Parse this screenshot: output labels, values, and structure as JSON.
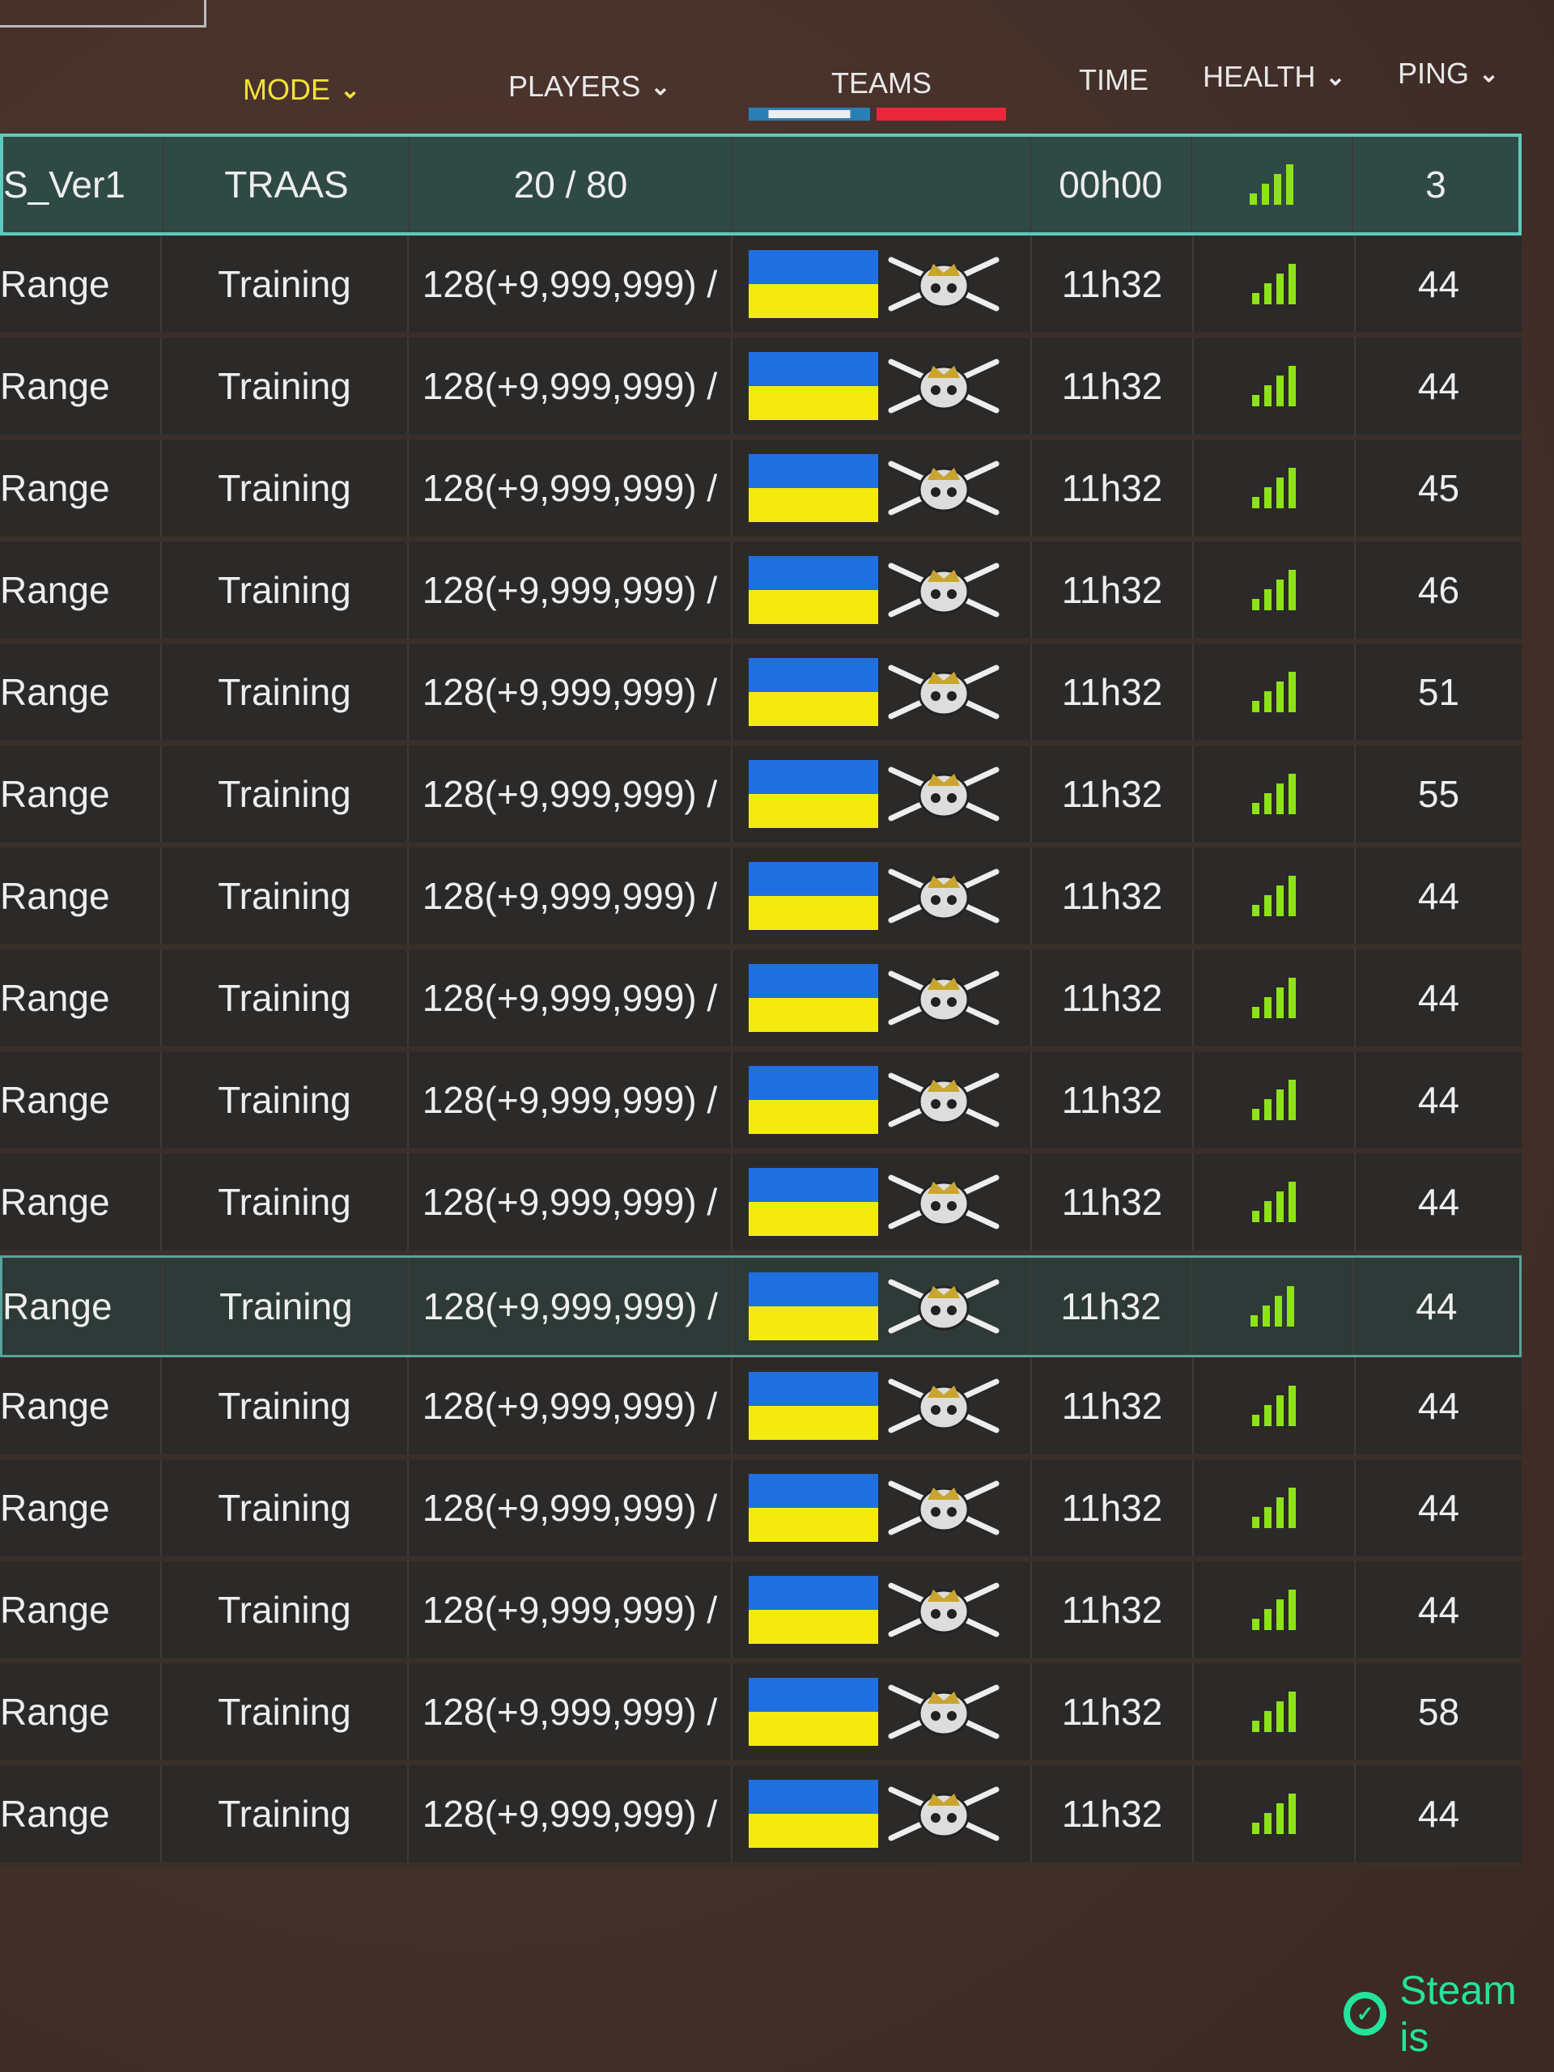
{
  "header": {
    "mode": "MODE",
    "players": "PLAYERS",
    "teams": "TEAMS",
    "time": "TIME",
    "health": "HEALTH",
    "ping": "PING"
  },
  "colors": {
    "active_sort": "#f2e23a",
    "selected_border": "#5fc9bd",
    "health_bars": "#8ee21a",
    "steam": "#24e39a"
  },
  "selected_row": {
    "server": "S_Ver1",
    "mode": "TRAAS",
    "players": "20 / 80",
    "time": "00h00",
    "health_bars": 4,
    "ping": "3"
  },
  "rows": [
    {
      "server": "Range",
      "mode": "Training",
      "players": "128(+9,999,999) /",
      "time": "11h32",
      "ping": "44"
    },
    {
      "server": "Range",
      "mode": "Training",
      "players": "128(+9,999,999) /",
      "time": "11h32",
      "ping": "44"
    },
    {
      "server": "Range",
      "mode": "Training",
      "players": "128(+9,999,999) /",
      "time": "11h32",
      "ping": "45"
    },
    {
      "server": "Range",
      "mode": "Training",
      "players": "128(+9,999,999) /",
      "time": "11h32",
      "ping": "46"
    },
    {
      "server": "Range",
      "mode": "Training",
      "players": "128(+9,999,999) /",
      "time": "11h32",
      "ping": "51"
    },
    {
      "server": "Range",
      "mode": "Training",
      "players": "128(+9,999,999) /",
      "time": "11h32",
      "ping": "55"
    },
    {
      "server": "Range",
      "mode": "Training",
      "players": "128(+9,999,999) /",
      "time": "11h32",
      "ping": "44"
    },
    {
      "server": "Range",
      "mode": "Training",
      "players": "128(+9,999,999) /",
      "time": "11h32",
      "ping": "44"
    },
    {
      "server": "Range",
      "mode": "Training",
      "players": "128(+9,999,999) /",
      "time": "11h32",
      "ping": "44"
    },
    {
      "server": "Range",
      "mode": "Training",
      "players": "128(+9,999,999) /",
      "time": "11h32",
      "ping": "44"
    },
    {
      "server": "Range",
      "mode": "Training",
      "players": "128(+9,999,999) /",
      "time": "11h32",
      "ping": "44",
      "hovered": true
    },
    {
      "server": "Range",
      "mode": "Training",
      "players": "128(+9,999,999) /",
      "time": "11h32",
      "ping": "44"
    },
    {
      "server": "Range",
      "mode": "Training",
      "players": "128(+9,999,999) /",
      "time": "11h32",
      "ping": "44"
    },
    {
      "server": "Range",
      "mode": "Training",
      "players": "128(+9,999,999) /",
      "time": "11h32",
      "ping": "44"
    },
    {
      "server": "Range",
      "mode": "Training",
      "players": "128(+9,999,999) /",
      "time": "11h32",
      "ping": "58"
    },
    {
      "server": "Range",
      "mode": "Training",
      "players": "128(+9,999,999) /",
      "time": "11h32",
      "ping": "44"
    }
  ],
  "row_icons": {
    "team1": "ukraine-flag-icon",
    "team2": "skull-crossed-swords-icon"
  },
  "status": {
    "text": "Steam is",
    "icon": "check-circle-icon"
  }
}
